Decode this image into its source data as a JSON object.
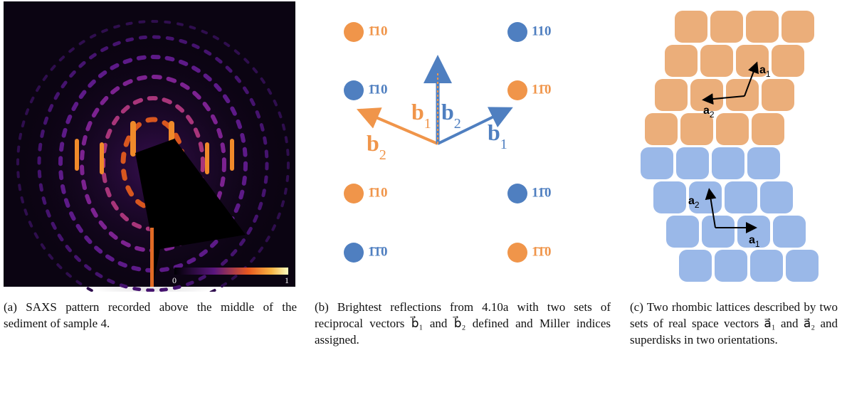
{
  "panel_a": {
    "colorbar_labels": [
      "0",
      "1"
    ],
    "caption": "(a) SAXS pattern recorded above the middle of the sediment of sample 4."
  },
  "panel_b": {
    "reflections": [
      {
        "label": "1̄10",
        "color": "orange"
      },
      {
        "label": "110",
        "color": "blue"
      },
      {
        "label": "1̄10",
        "color": "blue"
      },
      {
        "label": "11̄0",
        "color": "orange"
      },
      {
        "label": "1̄10",
        "color": "orange"
      },
      {
        "label": "11̄0",
        "color": "blue"
      },
      {
        "label": "1̄1̄0",
        "color": "blue"
      },
      {
        "label": "1̄1̄0",
        "color": "orange"
      }
    ],
    "vectors": [
      {
        "text": "b",
        "sub": "2",
        "color": "orange"
      },
      {
        "text": "b",
        "sub": "1",
        "color": "orange"
      },
      {
        "text": "b",
        "sub": "2",
        "color": "blue"
      },
      {
        "text": "b",
        "sub": "1",
        "color": "blue"
      }
    ],
    "caption": "(b) Brightest reflections from 4.10a with two sets of reciprocal vectors b⃗₁ and b⃗₂ defined and Miller indices assigned."
  },
  "panel_c": {
    "vectors": [
      {
        "text": "a",
        "sub": "1"
      },
      {
        "text": "a",
        "sub": "2"
      },
      {
        "text": "a",
        "sub": "2"
      },
      {
        "text": "a",
        "sub": "1"
      }
    ],
    "caption": "(c) Two rhombic lattices described by two sets of real space vectors a⃗₁ and a⃗₂ and superdisks in two orientations."
  }
}
